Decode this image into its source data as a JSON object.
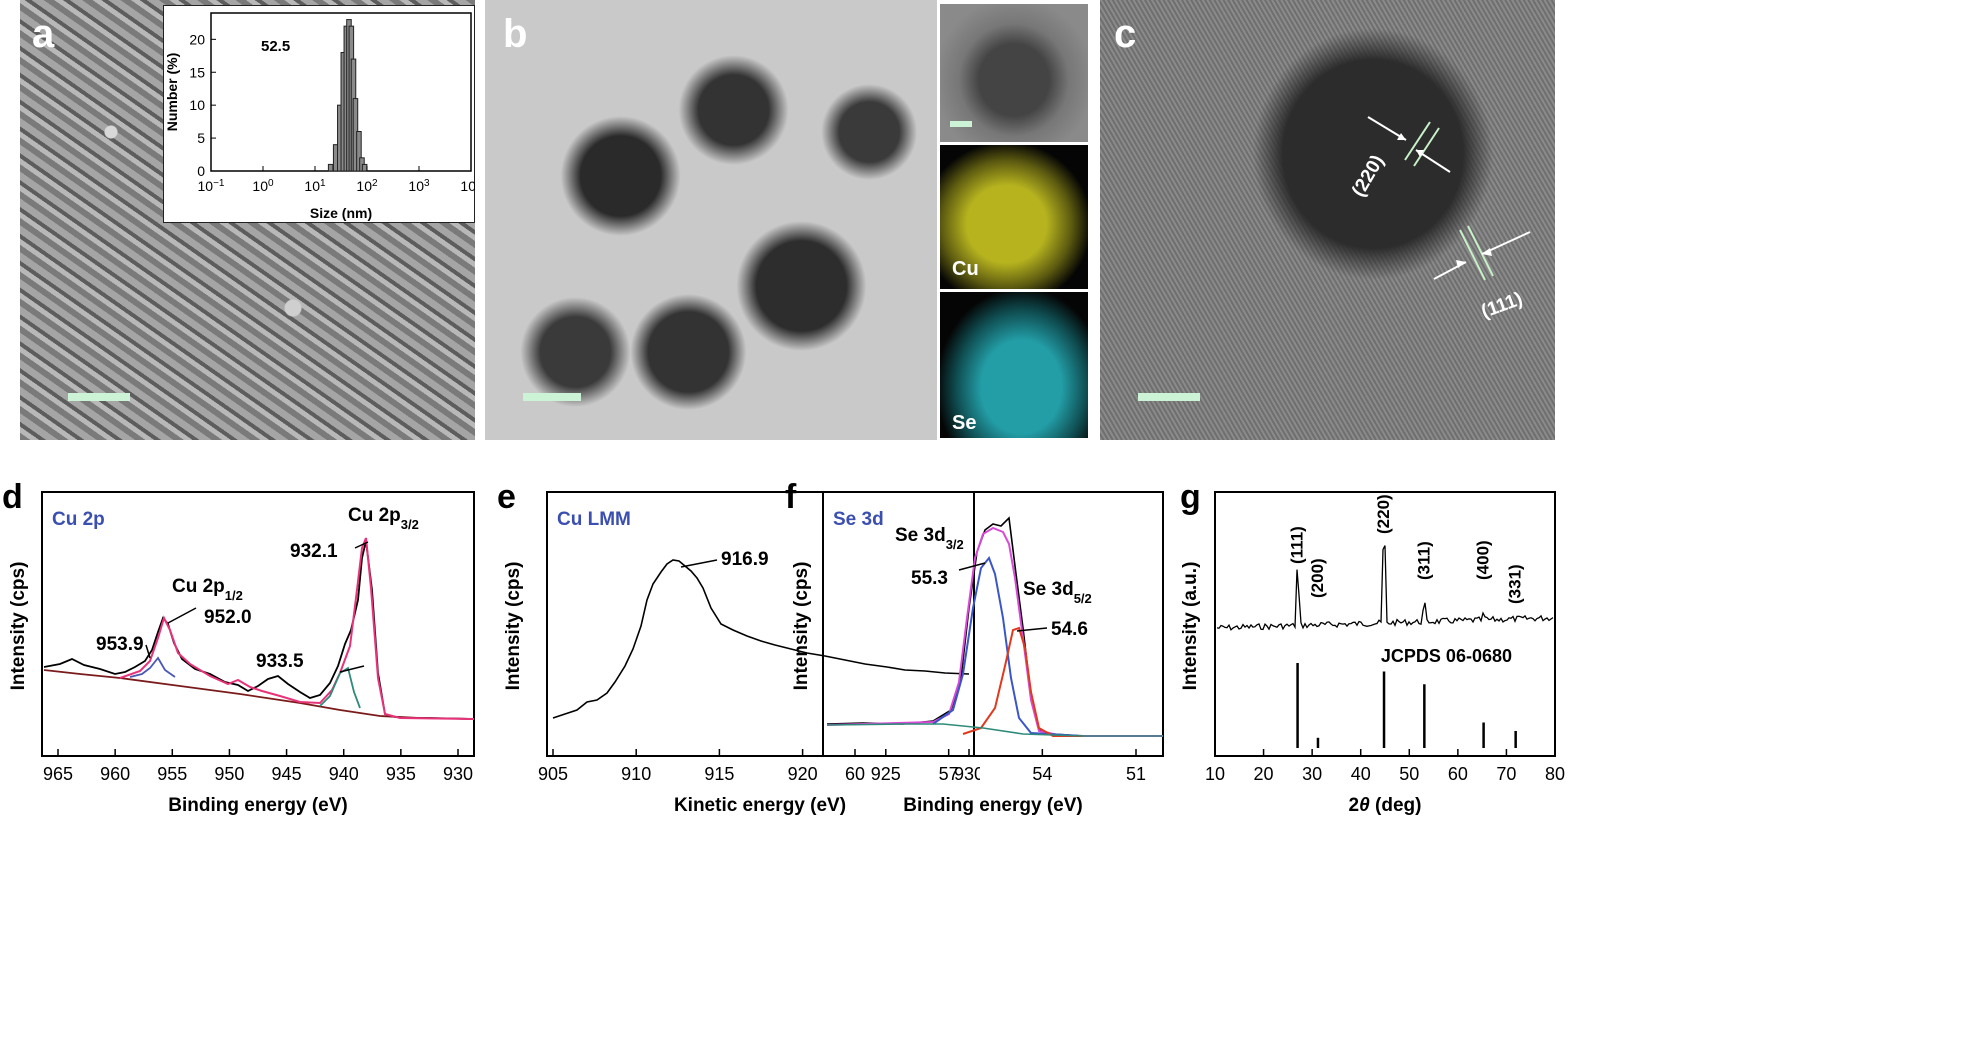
{
  "panels": {
    "a": {
      "letter": "a",
      "inset_value": "52.5",
      "inset_xlabel": "Size (nm)",
      "inset_ylabel": "Number (%)",
      "inset_yticks": [
        "0",
        "5",
        "10",
        "15",
        "20"
      ]
    },
    "b": {
      "letter": "b",
      "map_cu": "Cu",
      "map_se": "Se"
    },
    "c": {
      "letter": "c",
      "plane_220": "(220)",
      "plane_111": "(111)"
    },
    "d": {
      "letter": "d",
      "title": "Cu 2p",
      "ylabel": "Intensity (cps)",
      "xlabel": "Binding energy (eV)",
      "xticks": [
        "965",
        "960",
        "955",
        "950",
        "945",
        "940",
        "935",
        "930"
      ],
      "ann": [
        "953.9",
        "952.0",
        "933.5",
        "932.1"
      ]
    },
    "e": {
      "letter": "e",
      "title": "Cu LMM",
      "ylabel": "Intensity (cps)",
      "xlabel": "Kinetic energy (eV)",
      "xticks": [
        "905",
        "910",
        "915",
        "920",
        "925",
        "930"
      ],
      "ann": [
        "916.9"
      ]
    },
    "f": {
      "letter": "f",
      "title": "Se 3d",
      "ylabel": "Intensity (cps)",
      "xlabel": "Binding energy (eV)",
      "xticks": [
        "60",
        "57",
        "54",
        "51"
      ],
      "ann": [
        "55.3",
        "54.6"
      ]
    },
    "g": {
      "letter": "g",
      "ylabel": "Intensity (a.u.)",
      "xlabel": "2θ (deg)",
      "xticks": [
        "10",
        "20",
        "30",
        "40",
        "50",
        "60",
        "70",
        "80"
      ],
      "peaks": [
        "(111)",
        "(200)",
        "(220)",
        "(311)",
        "(400)",
        "(331)"
      ],
      "ref": "JCPDS 06-0680"
    }
  },
  "chart_data": [
    {
      "type": "bar",
      "title": "",
      "xlabel": "Size (nm)",
      "ylabel": "Number (%)",
      "xscale": "log",
      "xlim": [
        0.1,
        10000
      ],
      "ylim": [
        0,
        24
      ],
      "x": [
        20,
        25,
        30,
        35,
        40,
        45,
        50,
        55,
        60,
        70,
        80,
        90
      ],
      "values": [
        1,
        4,
        10,
        18,
        22,
        23,
        22,
        17,
        11,
        6,
        2,
        1
      ],
      "annotation": "52.5"
    },
    {
      "type": "line",
      "title": "Cu 2p",
      "xlabel": "Binding energy (eV)",
      "ylabel": "Intensity (cps)",
      "xlim": [
        967,
        927
      ],
      "xdir": "reversed",
      "labels": [
        {
          "x": 953.9,
          "text": "953.9"
        },
        {
          "x": 952.0,
          "text": "952.0",
          "name": "Cu 2p1/2"
        },
        {
          "x": 933.5,
          "text": "933.5"
        },
        {
          "x": 932.1,
          "text": "932.1",
          "name": "Cu 2p3/2"
        }
      ]
    },
    {
      "type": "line",
      "title": "Cu LMM",
      "xlabel": "Kinetic energy (eV)",
      "ylabel": "Intensity (cps)",
      "xlim": [
        905,
        930
      ],
      "labels": [
        {
          "x": 916.9,
          "text": "916.9"
        }
      ]
    },
    {
      "type": "line",
      "title": "Se 3d",
      "xlabel": "Binding energy (eV)",
      "ylabel": "Intensity (cps)",
      "xlim": [
        61,
        49
      ],
      "xdir": "reversed",
      "labels": [
        {
          "x": 55.3,
          "text": "55.3",
          "name": "Se 3d3/2"
        },
        {
          "x": 54.6,
          "text": "54.6",
          "name": "Se 3d5/2"
        }
      ]
    },
    {
      "type": "line",
      "title": "",
      "xlabel": "2θ (deg)",
      "ylabel": "Intensity (a.u.)",
      "xlim": [
        10,
        80
      ],
      "peaks": [
        {
          "x": 27.0,
          "label": "(111)"
        },
        {
          "x": 31.2,
          "label": "(200)"
        },
        {
          "x": 44.8,
          "label": "(220)"
        },
        {
          "x": 53.1,
          "label": "(311)"
        },
        {
          "x": 65.3,
          "label": "(400)"
        },
        {
          "x": 71.9,
          "label": "(331)"
        }
      ],
      "reference": {
        "name": "JCPDS 06-0680",
        "x": [
          27.0,
          31.2,
          44.8,
          53.1,
          65.3,
          71.9
        ],
        "values": [
          100,
          12,
          90,
          75,
          30,
          20
        ]
      }
    }
  ]
}
